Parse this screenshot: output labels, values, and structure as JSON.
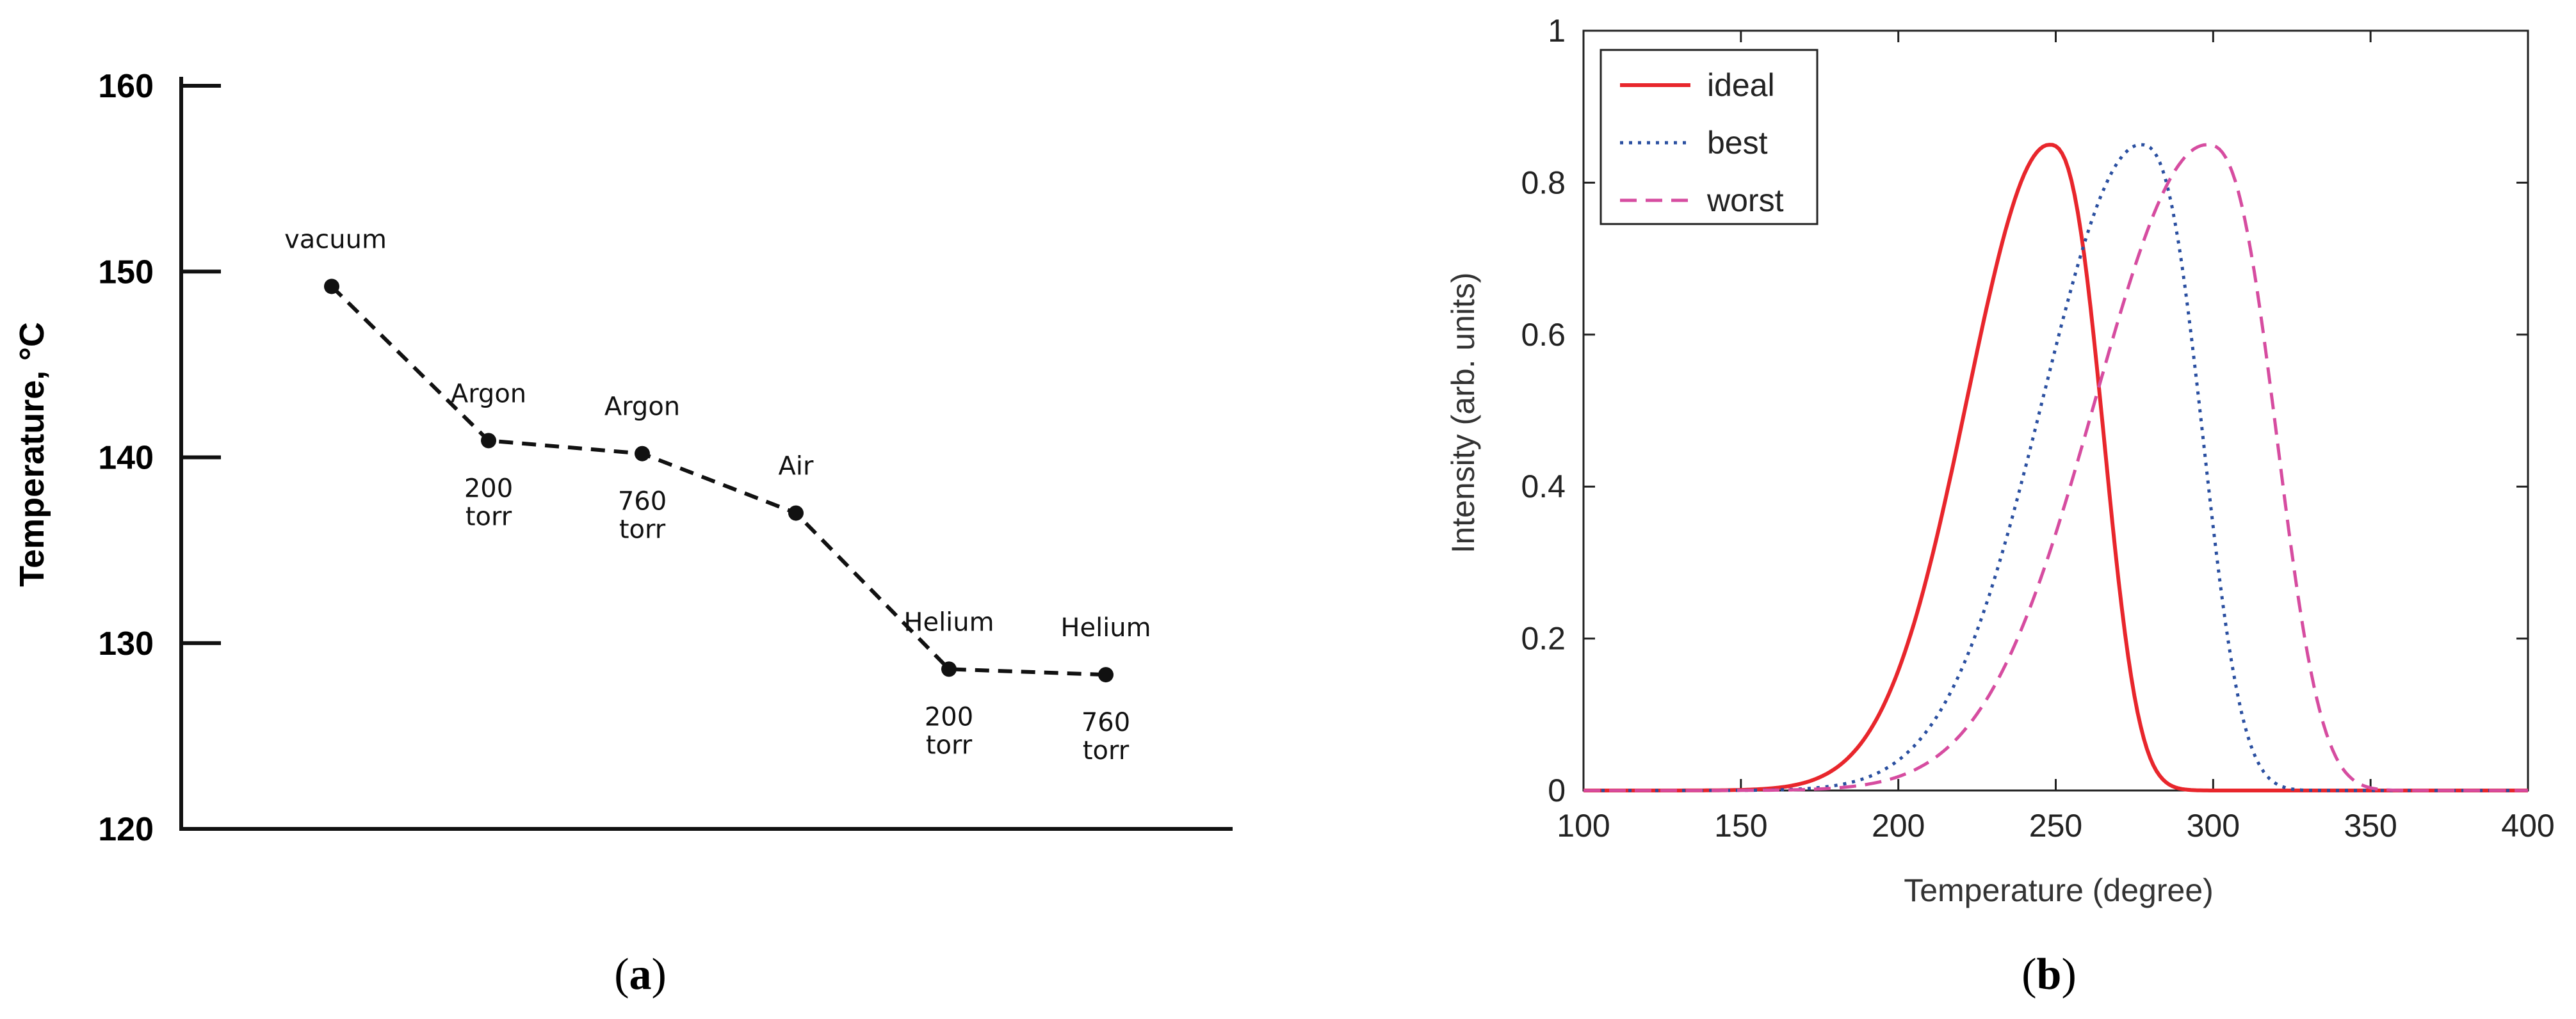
{
  "chart_data": [
    {
      "type": "line",
      "panel_label": "(a)",
      "panel_label_parts": {
        "open": "(",
        "letter": "a",
        "close": ")"
      },
      "ylabel_prefix": "Temperature, ",
      "ylabel_unit": "°C",
      "ylim": [
        120,
        160
      ],
      "yticks": [
        "120",
        "130",
        "140",
        "150",
        "160"
      ],
      "line_style": "dashed",
      "points": [
        {
          "label": [
            "vacuum"
          ],
          "value": 149.2
        },
        {
          "label": [
            "Argon"
          ],
          "sublabel": [
            "200",
            "torr"
          ],
          "value": 140.9
        },
        {
          "label": [
            "Argon"
          ],
          "sublabel": [
            "760",
            "torr"
          ],
          "value": 140.2
        },
        {
          "label": [
            "Air"
          ],
          "value": 137.0
        },
        {
          "label": [
            "Helium"
          ],
          "sublabel": [
            "200",
            "torr"
          ],
          "value": 128.6
        },
        {
          "label": [
            "Helium"
          ],
          "sublabel": [
            "760",
            "torr"
          ],
          "value": 128.3
        }
      ]
    },
    {
      "type": "line",
      "panel_label": "(b)",
      "panel_label_parts": {
        "open": "(",
        "letter": "b",
        "close": ")"
      },
      "xlabel": "Temperature (degree)",
      "ylabel": "Intensity (arb. units)",
      "xlim": [
        100,
        400
      ],
      "ylim": [
        0,
        1
      ],
      "xticks": [
        "100",
        "150",
        "200",
        "250",
        "300",
        "350",
        "400"
      ],
      "yticks": [
        "0",
        "0.2",
        "0.4",
        "0.6",
        "0.8",
        "1"
      ],
      "legend_position": "top-left",
      "series": [
        {
          "name": "ideal",
          "color": "#e8262c",
          "style": "solid",
          "peak_x": 248,
          "peak_y": 0.85,
          "width_left": 37,
          "width_right": 21
        },
        {
          "name": "best",
          "color": "#2a4fa0",
          "style": "dotted",
          "peak_x": 277,
          "peak_y": 0.85,
          "width_left": 44,
          "width_right": 24
        },
        {
          "name": "worst",
          "color": "#d64ca0",
          "style": "dashed",
          "peak_x": 298,
          "peak_y": 0.85,
          "width_left": 50,
          "width_right": 27
        }
      ]
    }
  ]
}
